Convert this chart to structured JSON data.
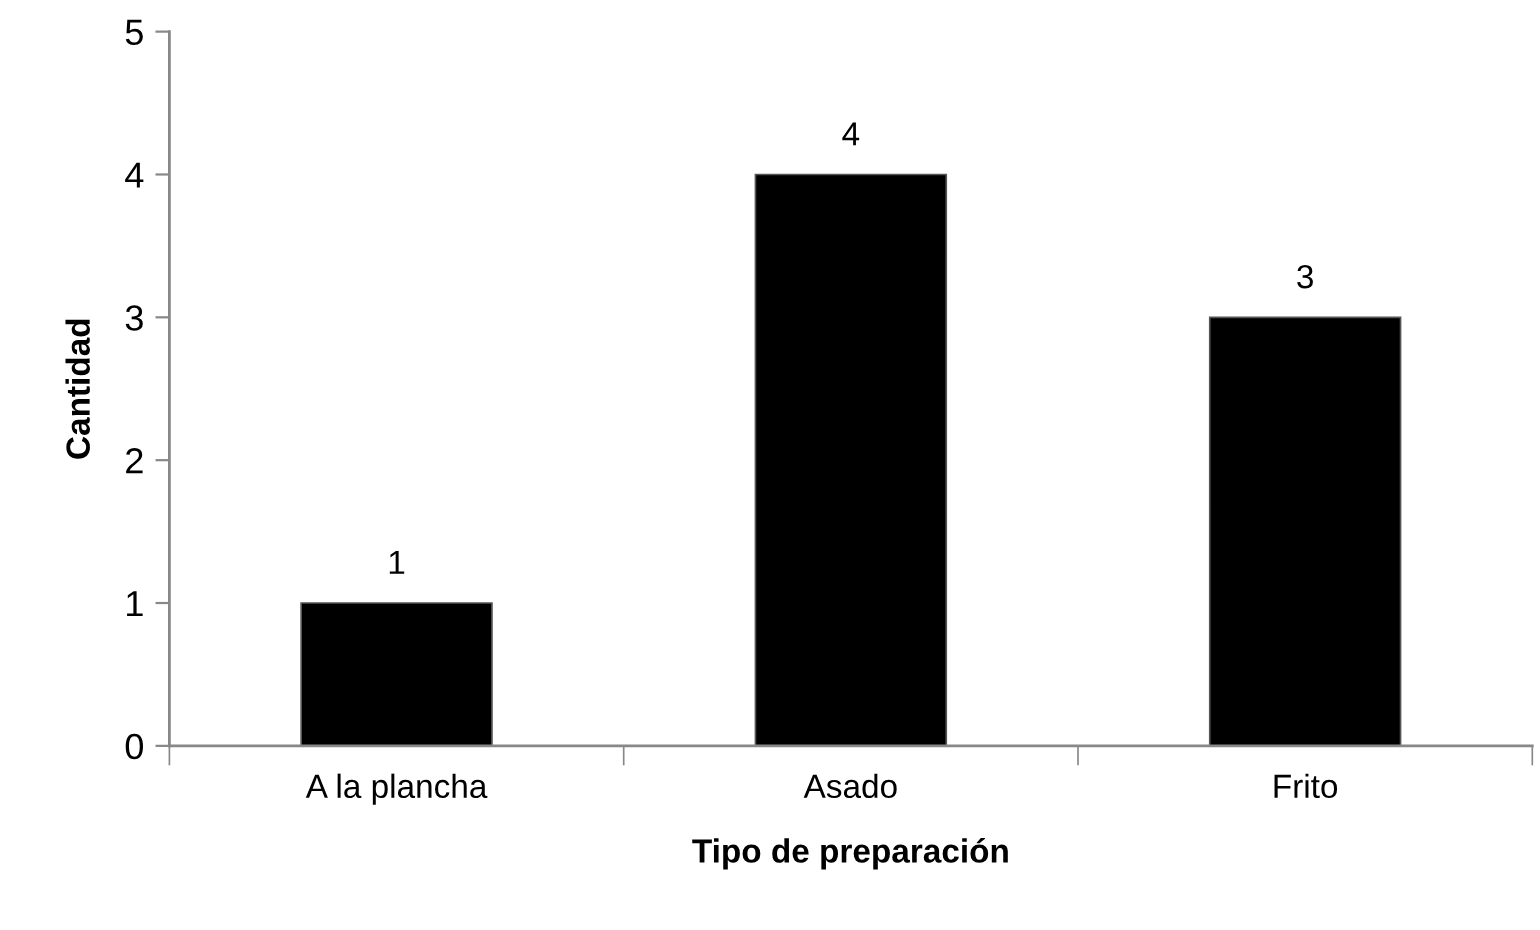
{
  "chart_data": {
    "type": "bar",
    "xlabel": "Tipo de preparación",
    "ylabel": "Cantidad",
    "categories": [
      "A la plancha",
      "Asado",
      "Frito"
    ],
    "values": [
      1,
      4,
      3
    ],
    "color": "#000000",
    "ylim": [
      0,
      5
    ],
    "yticks": [
      0,
      1,
      2,
      3,
      4,
      5
    ],
    "grid": false,
    "data_labels": true
  }
}
